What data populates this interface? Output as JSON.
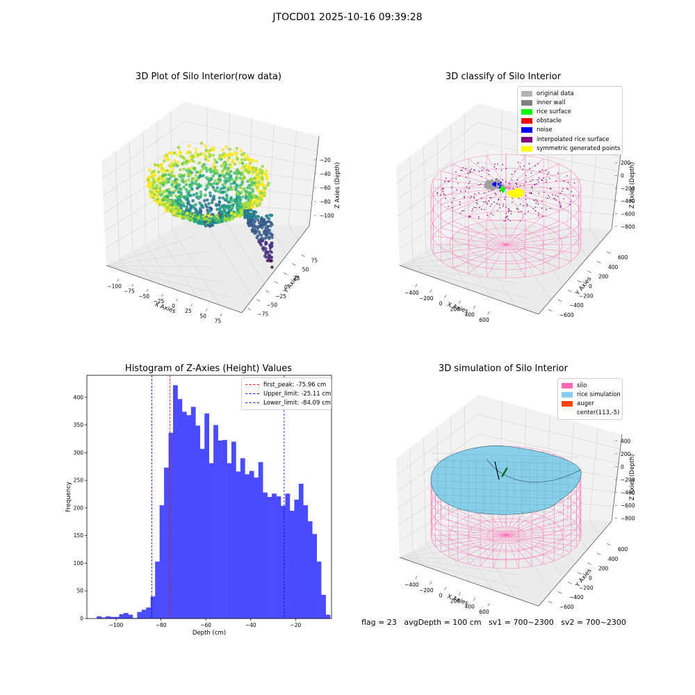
{
  "figure": {
    "suptitle": "JTOCD01 2025-10-16 09:39:28",
    "footer": "flag = 23   avgDepth = 100 cm   sv1 = 700~2300   sv2 = 700~2300"
  },
  "colors": {
    "histogram_bar": "#4b4bff",
    "first_peak_line": "#ff0000",
    "limit_lines": "#0000ff",
    "pane_floor": "#f2f2f2",
    "silo_wireframe": "#ff69b4",
    "rice_simulation": "#87ceeb",
    "auger": "#ff4500"
  },
  "panels": {
    "raw": {
      "title": "3D Plot of Silo Interior(row data)",
      "xlabel": "X Axies",
      "ylabel": "Y Axies",
      "zlabel": "Z Axies (Depth)",
      "xticks": [
        "−100",
        "−75",
        "−50",
        "−25",
        "0",
        "25",
        "50",
        "75"
      ],
      "yticks": [
        "−75",
        "−50",
        "−25",
        "0",
        "25",
        "50",
        "75"
      ],
      "zticks": [
        "−100",
        "−80",
        "−60",
        "−40",
        "−20"
      ],
      "colormap": "viridis"
    },
    "classify": {
      "title": "3D classify of Silo Interior",
      "xlabel": "X Axies",
      "ylabel": "Y Axies",
      "zlabel": "Z Axies (Depth)",
      "xticks": [
        "−400",
        "−200",
        "0",
        "200",
        "400",
        "600"
      ],
      "yticks": [
        "−600",
        "−400",
        "−200",
        "0",
        "200",
        "400",
        "600"
      ],
      "zticks": [
        "−800",
        "−600",
        "−400",
        "−200",
        "0",
        "200"
      ],
      "legend": [
        {
          "label": "original data",
          "color": "#b3b3b3"
        },
        {
          "label": "inner wall",
          "color": "#808080"
        },
        {
          "label": "rice surface",
          "color": "#00ff00"
        },
        {
          "label": "obstacle",
          "color": "#ff0000"
        },
        {
          "label": "noise",
          "color": "#0000ff"
        },
        {
          "label": "interpolated rice surface",
          "color": "#800080"
        },
        {
          "label": "symmetric generated points",
          "color": "#ffff00"
        }
      ]
    },
    "histogram": {
      "title": "Histogram of Z-Axies (Height) Values",
      "xlabel": "Depth (cm)",
      "ylabel": "Frequency",
      "legend": [
        {
          "label": "first_peak: -75.96 cm",
          "color": "#ff0000"
        },
        {
          "label": "Upper_limit: -25.11 cm",
          "color": "#0000ff"
        },
        {
          "label": "Lower_limit: -84.09 cm",
          "color": "#0000ff"
        }
      ]
    },
    "simulation": {
      "title": "3D simulation of Silo Interior",
      "xlabel": "X Axies",
      "ylabel": "Y Axies",
      "zlabel": "Z Axies (Depth)",
      "xticks": [
        "−400",
        "−200",
        "0",
        "200",
        "400",
        "600"
      ],
      "yticks": [
        "−600",
        "−400",
        "−200",
        "0",
        "200",
        "400",
        "600"
      ],
      "zticks": [
        "−800",
        "−600",
        "−400",
        "−200",
        "0",
        "200",
        "400"
      ],
      "legend": [
        {
          "label": "silo",
          "color": "#ff69b4"
        },
        {
          "label": "rice simulation",
          "color": "#87ceeb"
        },
        {
          "label": "auger",
          "color": "#ff4500"
        },
        {
          "label": "center(113,-5)",
          "color": ""
        }
      ]
    }
  },
  "chart_data": [
    {
      "type": "histogram",
      "title": "Histogram of Z-Axies (Height) Values",
      "xlabel": "Depth (cm)",
      "ylabel": "Frequency",
      "xlim": [
        -113,
        -4
      ],
      "ylim": [
        0,
        440
      ],
      "xticks": [
        -100,
        -80,
        -60,
        -40,
        -20
      ],
      "yticks": [
        0,
        50,
        100,
        150,
        200,
        250,
        300,
        350,
        400
      ],
      "bin_start": -108.6,
      "bin_width": 2.0,
      "counts": [
        4,
        2,
        4,
        3,
        3,
        8,
        10,
        7,
        1,
        12,
        16,
        20,
        40,
        103,
        205,
        273,
        336,
        422,
        397,
        374,
        368,
        383,
        349,
        307,
        371,
        281,
        350,
        322,
        323,
        281,
        320,
        266,
        290,
        261,
        267,
        255,
        283,
        228,
        220,
        226,
        221,
        204,
        226,
        195,
        215,
        244,
        205,
        176,
        153,
        103,
        43,
        7
      ],
      "vlines": [
        {
          "name": "first_peak",
          "x": -75.96
        },
        {
          "name": "Upper_limit",
          "x": -25.11
        },
        {
          "name": "Lower_limit",
          "x": -84.09
        }
      ]
    },
    {
      "type": "scatter",
      "title": "3D Plot of Silo Interior(row data)",
      "xlabel": "X Axies",
      "ylabel": "Y Axies",
      "zlabel": "Z Axies (Depth)",
      "xlim": [
        -115,
        95
      ],
      "ylim": [
        -95,
        95
      ],
      "zlim": [
        -115,
        -5
      ]
    },
    {
      "type": "scatter",
      "title": "3D classify of Silo Interior",
      "xlabel": "X Axies",
      "ylabel": "Y Axies",
      "zlabel": "Z Axies (Depth)",
      "xlim": [
        -500,
        750
      ],
      "ylim": [
        -700,
        700
      ],
      "zlim": [
        -900,
        300
      ]
    },
    {
      "type": "surface",
      "title": "3D simulation of Silo Interior",
      "xlabel": "X Axies",
      "ylabel": "Y Axies",
      "zlabel": "Z Axies (Depth)",
      "xlim": [
        -500,
        750
      ],
      "ylim": [
        -700,
        700
      ],
      "zlim": [
        -900,
        500
      ]
    }
  ]
}
